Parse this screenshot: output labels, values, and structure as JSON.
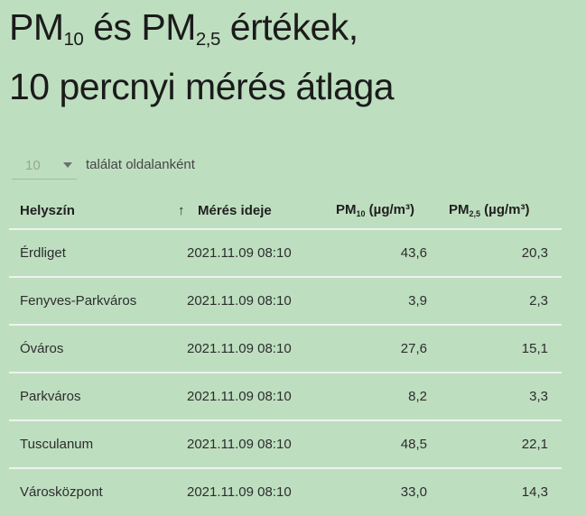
{
  "colors": {
    "background": "#bedec0",
    "title_text": "#1b1b1b",
    "table_text": "#2d2d2d",
    "separator": "#edf4ed",
    "muted_select_value": "#95a897"
  },
  "title": {
    "line1": {
      "pm10_base": "PM",
      "pm10_sub": "10",
      "mid": " és PM",
      "pm25_sub": "2,5",
      "end": " értékek,"
    },
    "line2": "10 percnyi mérés átlaga"
  },
  "page_length_control": {
    "selected_value": "10",
    "label": "találat oldalanként"
  },
  "table": {
    "headers": {
      "location": "Helyszín",
      "sort_icon": "↑",
      "time": "Mérés ideje",
      "pm10": {
        "base": "PM",
        "sub": "10",
        "unit": " (µg/m³)"
      },
      "pm25": {
        "base": "PM",
        "sub": "2,5",
        "unit": " (µg/m³)"
      }
    },
    "rows": [
      {
        "location": "Érdliget",
        "time": "2021.11.09 08:10",
        "pm10": "43,6",
        "pm25": "20,3"
      },
      {
        "location": "Fenyves-Parkváros",
        "time": "2021.11.09 08:10",
        "pm10": "3,9",
        "pm25": "2,3"
      },
      {
        "location": "Óváros",
        "time": "2021.11.09 08:10",
        "pm10": "27,6",
        "pm25": "15,1"
      },
      {
        "location": "Parkváros",
        "time": "2021.11.09 08:10",
        "pm10": "8,2",
        "pm25": "3,3"
      },
      {
        "location": "Tusculanum",
        "time": "2021.11.09 08:10",
        "pm10": "48,5",
        "pm25": "22,1"
      },
      {
        "location": "Városközpont",
        "time": "2021.11.09 08:10",
        "pm10": "33,0",
        "pm25": "14,3"
      }
    ]
  }
}
